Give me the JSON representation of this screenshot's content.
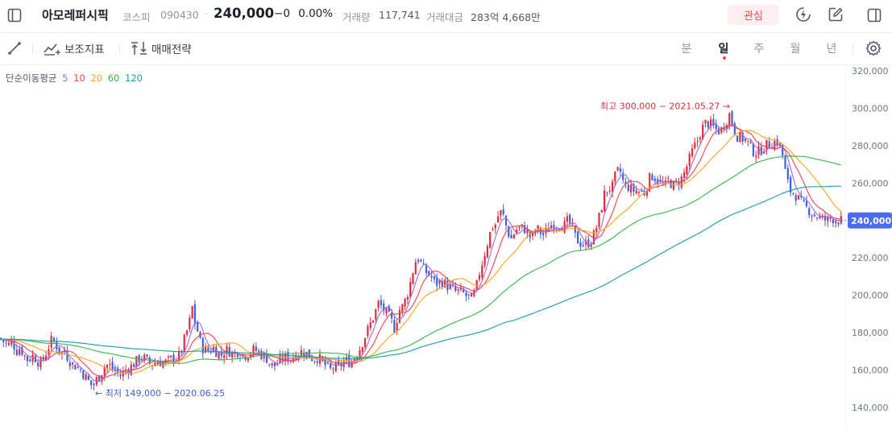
{
  "header": {
    "stock_name": "아모레퍼시픽",
    "market": "코스피",
    "code": "090430",
    "price": "240,000",
    "change_arrow": "−",
    "change_value": "0",
    "change_pct": "0.00%",
    "volume_label": "거래량",
    "volume_value": "117,741",
    "amount_label": "거래대금",
    "amount_value": "283억 4,668만",
    "favorite_label": "관심"
  },
  "toolbar": {
    "indicator_label": "보조지표",
    "strategy_label": "매매전략",
    "periods": [
      "분",
      "일",
      "주",
      "월",
      "년"
    ],
    "active_period": "일"
  },
  "ma_legend": {
    "title": "단순이동평균",
    "items": [
      {
        "label": "5",
        "color": "#9b6de0"
      },
      {
        "label": "10",
        "color": "#f04452"
      },
      {
        "label": "20",
        "color": "#f5a623"
      },
      {
        "label": "60",
        "color": "#3cb44b"
      },
      {
        "label": "120",
        "color": "#1b9aaa"
      }
    ]
  },
  "colors": {
    "up": "#e42939",
    "down": "#3d5fe0",
    "accent": "#f04452"
  },
  "icons": {
    "sidebar": "sidebar-toggle-icon",
    "lightning": "lightning-icon",
    "edit": "edit-icon",
    "panel": "panel-icon",
    "draw": "draw-line-icon",
    "indicator": "indicator-icon",
    "strategy": "strategy-icon",
    "settings": "gear-icon"
  },
  "chart_data": {
    "type": "candlestick",
    "y_axis_ticks": [
      "320,000",
      "300,000",
      "280,000",
      "260,000",
      "240,000",
      "220,000",
      "200,000",
      "180,000",
      "160,000",
      "140,000"
    ],
    "ylim": [
      135000,
      325000
    ],
    "current_price": 240000,
    "current_price_label": "240,000",
    "high_annotation": "최고 300,000 − 2021.05.27",
    "low_annotation": "최저 149,000 − 2020.06.25",
    "high_value": 300000,
    "low_value": 149000,
    "close_series": [
      [
        0,
        177000
      ],
      [
        5,
        175000
      ],
      [
        10,
        173000
      ],
      [
        15,
        176000
      ],
      [
        20,
        170000
      ],
      [
        25,
        172000
      ],
      [
        30,
        168000
      ],
      [
        35,
        165000
      ],
      [
        40,
        168000
      ],
      [
        45,
        166000
      ],
      [
        50,
        163000
      ],
      [
        55,
        167000
      ],
      [
        60,
        172000
      ],
      [
        65,
        177000
      ],
      [
        70,
        173000
      ],
      [
        75,
        169000
      ],
      [
        80,
        170000
      ],
      [
        85,
        166000
      ],
      [
        90,
        163000
      ],
      [
        95,
        162000
      ],
      [
        100,
        160000
      ],
      [
        105,
        157000
      ],
      [
        110,
        154000
      ],
      [
        115,
        151000
      ],
      [
        120,
        155000
      ],
      [
        125,
        158000
      ],
      [
        130,
        162000
      ],
      [
        135,
        163000
      ],
      [
        140,
        160000
      ],
      [
        145,
        159000
      ],
      [
        150,
        157000
      ],
      [
        155,
        160000
      ],
      [
        160,
        161000
      ],
      [
        165,
        163000
      ],
      [
        170,
        165000
      ],
      [
        175,
        167000
      ],
      [
        180,
        166000
      ],
      [
        185,
        164000
      ],
      [
        190,
        163000
      ],
      [
        195,
        165000
      ],
      [
        200,
        164000
      ],
      [
        205,
        164000
      ],
      [
        210,
        165000
      ],
      [
        215,
        167000
      ],
      [
        220,
        166000
      ],
      [
        225,
        170000
      ],
      [
        230,
        178000
      ],
      [
        235,
        185000
      ],
      [
        238,
        195000
      ],
      [
        242,
        185000
      ],
      [
        246,
        180000
      ],
      [
        250,
        172000
      ],
      [
        255,
        171000
      ],
      [
        260,
        170000
      ],
      [
        265,
        172000
      ],
      [
        270,
        169000
      ],
      [
        275,
        168000
      ],
      [
        280,
        171000
      ],
      [
        285,
        170000
      ],
      [
        290,
        168000
      ],
      [
        295,
        170000
      ],
      [
        300,
        168000
      ],
      [
        305,
        168000
      ],
      [
        310,
        169000
      ],
      [
        315,
        171000
      ],
      [
        320,
        170000
      ],
      [
        325,
        168000
      ],
      [
        330,
        167000
      ],
      [
        335,
        163000
      ],
      [
        340,
        162000
      ],
      [
        345,
        164000
      ],
      [
        350,
        166000
      ],
      [
        355,
        167000
      ],
      [
        360,
        166000
      ],
      [
        365,
        168000
      ],
      [
        370,
        169000
      ],
      [
        375,
        170000
      ],
      [
        380,
        169000
      ],
      [
        385,
        167000
      ],
      [
        390,
        166000
      ],
      [
        395,
        167000
      ],
      [
        400,
        164000
      ],
      [
        405,
        162000
      ],
      [
        410,
        160000
      ],
      [
        415,
        162000
      ],
      [
        420,
        161000
      ],
      [
        425,
        164000
      ],
      [
        430,
        165000
      ],
      [
        435,
        164000
      ],
      [
        440,
        167000
      ],
      [
        445,
        170000
      ],
      [
        450,
        175000
      ],
      [
        455,
        180000
      ],
      [
        460,
        185000
      ],
      [
        465,
        190000
      ],
      [
        470,
        196000
      ],
      [
        475,
        193000
      ],
      [
        480,
        190000
      ],
      [
        485,
        187000
      ],
      [
        490,
        182000
      ],
      [
        495,
        192000
      ],
      [
        500,
        194000
      ],
      [
        505,
        200000
      ],
      [
        510,
        208000
      ],
      [
        515,
        218000
      ],
      [
        520,
        220000
      ],
      [
        525,
        214000
      ],
      [
        530,
        212000
      ],
      [
        535,
        210000
      ],
      [
        540,
        206000
      ],
      [
        545,
        207000
      ],
      [
        550,
        207000
      ],
      [
        555,
        205000
      ],
      [
        560,
        204000
      ],
      [
        565,
        202000
      ],
      [
        570,
        202000
      ],
      [
        575,
        201000
      ],
      [
        580,
        199000
      ],
      [
        585,
        198000
      ],
      [
        590,
        202000
      ],
      [
        595,
        212000
      ],
      [
        600,
        220000
      ],
      [
        605,
        228000
      ],
      [
        610,
        236000
      ],
      [
        615,
        238000
      ],
      [
        620,
        245000
      ],
      [
        625,
        242000
      ],
      [
        630,
        234000
      ],
      [
        635,
        230000
      ],
      [
        640,
        235000
      ],
      [
        645,
        236000
      ],
      [
        650,
        236000
      ],
      [
        655,
        233000
      ],
      [
        660,
        230000
      ],
      [
        665,
        236000
      ],
      [
        670,
        234000
      ],
      [
        675,
        232000
      ],
      [
        680,
        236000
      ],
      [
        685,
        238000
      ],
      [
        690,
        238000
      ],
      [
        695,
        238000
      ],
      [
        700,
        237000
      ],
      [
        705,
        240000
      ],
      [
        710,
        236000
      ],
      [
        715,
        230000
      ],
      [
        720,
        228000
      ],
      [
        725,
        227000
      ],
      [
        730,
        228000
      ],
      [
        735,
        230000
      ],
      [
        740,
        236000
      ],
      [
        745,
        244000
      ],
      [
        750,
        254000
      ],
      [
        755,
        257000
      ],
      [
        760,
        258000
      ],
      [
        765,
        266000
      ],
      [
        770,
        266000
      ],
      [
        775,
        258000
      ],
      [
        780,
        258000
      ],
      [
        785,
        256000
      ],
      [
        790,
        256000
      ],
      [
        795,
        255000
      ],
      [
        800,
        255000
      ],
      [
        805,
        262000
      ],
      [
        810,
        264000
      ],
      [
        815,
        262000
      ],
      [
        820,
        260000
      ],
      [
        825,
        258000
      ],
      [
        830,
        262000
      ],
      [
        835,
        258000
      ],
      [
        840,
        260000
      ],
      [
        845,
        262000
      ],
      [
        850,
        266000
      ],
      [
        855,
        272000
      ],
      [
        860,
        278000
      ],
      [
        865,
        282000
      ],
      [
        870,
        288000
      ],
      [
        875,
        292000
      ],
      [
        880,
        292000
      ],
      [
        885,
        290000
      ],
      [
        890,
        288000
      ],
      [
        895,
        288000
      ],
      [
        900,
        292000
      ],
      [
        905,
        297000
      ],
      [
        910,
        290000
      ],
      [
        915,
        285000
      ],
      [
        920,
        284000
      ],
      [
        925,
        283000
      ],
      [
        930,
        280000
      ],
      [
        935,
        277000
      ],
      [
        940,
        276000
      ],
      [
        945,
        278000
      ],
      [
        950,
        280000
      ],
      [
        955,
        281000
      ],
      [
        960,
        282000
      ],
      [
        965,
        282000
      ],
      [
        970,
        278000
      ],
      [
        975,
        265000
      ],
      [
        980,
        256000
      ],
      [
        985,
        255000
      ],
      [
        990,
        252000
      ],
      [
        995,
        249000
      ],
      [
        1000,
        247000
      ],
      [
        1005,
        245000
      ],
      [
        1010,
        243000
      ],
      [
        1015,
        242000
      ],
      [
        1020,
        241000
      ],
      [
        1025,
        240000
      ],
      [
        1030,
        241000
      ],
      [
        1035,
        241000
      ],
      [
        1040,
        240000
      ],
      [
        1045,
        240000
      ]
    ]
  }
}
